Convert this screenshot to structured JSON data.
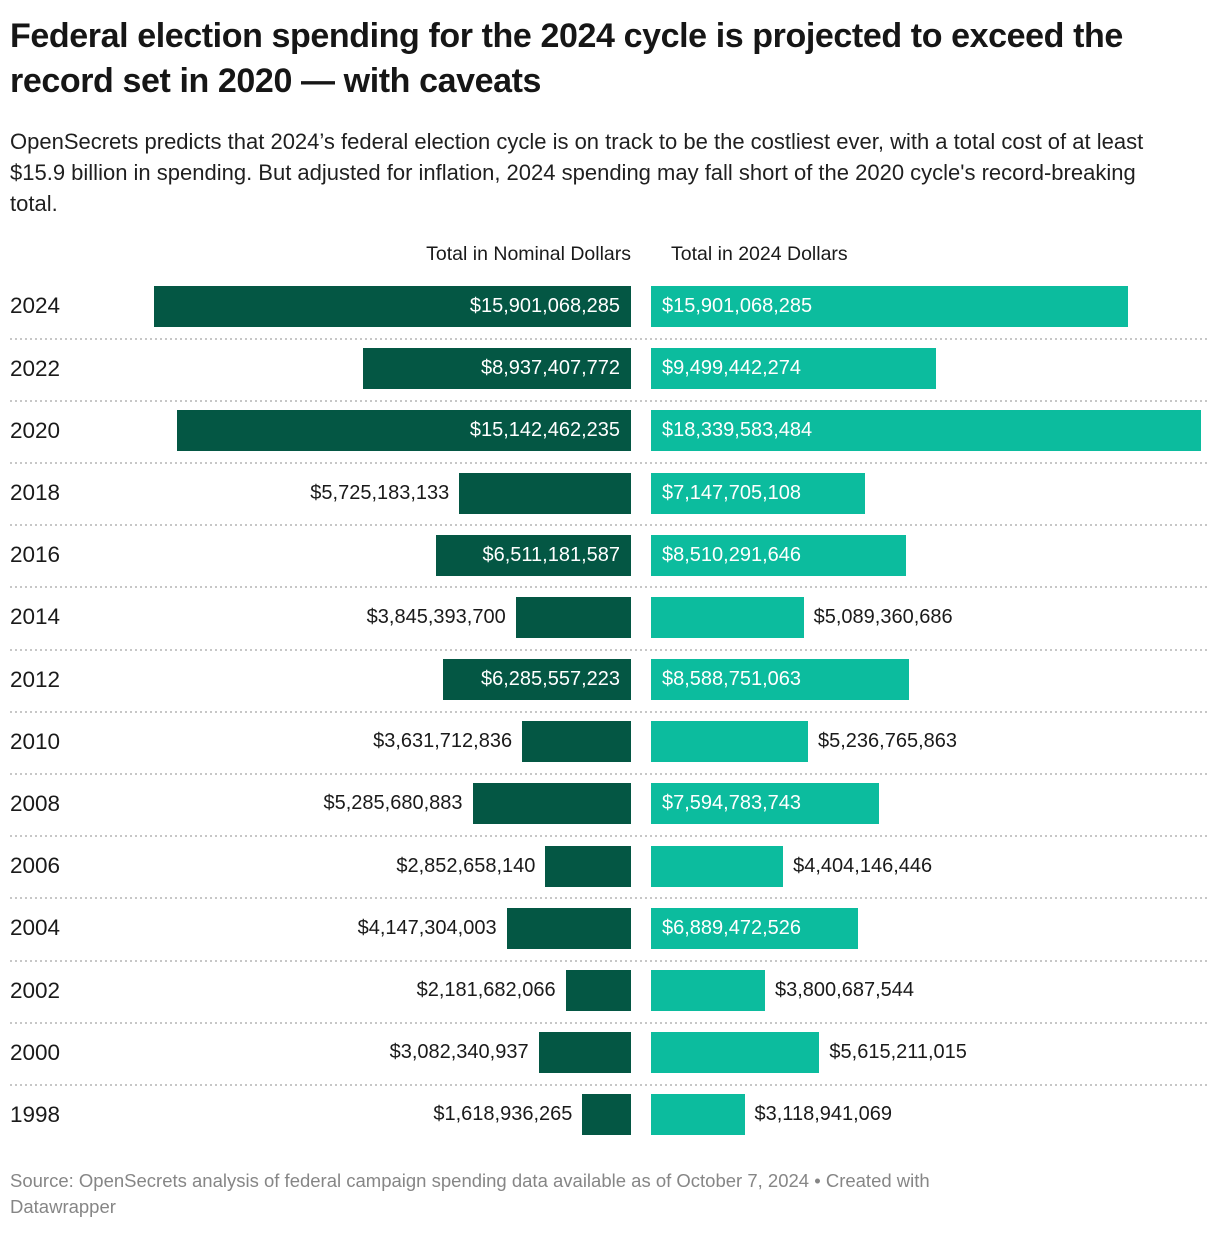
{
  "header": {
    "title": "Federal election spending for the 2024 cycle is projected to exceed the record set in 2020 — with caveats",
    "subtitle": "OpenSecrets predicts that 2024’s federal election cycle is on track to be the costliest ever, with a total cost of at least $15.9 billion in spending. But adjusted for inflation, 2024 spending may fall short of the 2020 cycle's record-breaking total."
  },
  "columns": {
    "nominal": "Total in Nominal Dollars",
    "adjusted": "Total in 2024 Dollars"
  },
  "colors": {
    "nominal_bar": "#045744",
    "adjusted_bar": "#0cbc9e",
    "text": "#1a1a1a",
    "inside_label": "#ffffff",
    "separator": "#c7c7c7",
    "footer_text": "#868686"
  },
  "footer": {
    "line1": "Source: OpenSecrets analysis of federal campaign spending data available as of October 7, 2024 • Created with",
    "line2": "Datawrapper"
  },
  "chart_data": {
    "type": "bar",
    "orientation": "horizontal",
    "unit": "USD",
    "title": "Federal election spending for the 2024 cycle is projected to exceed the record set in 2020 — with caveats",
    "categories": [
      "2024",
      "2022",
      "2020",
      "2018",
      "2016",
      "2014",
      "2012",
      "2010",
      "2008",
      "2006",
      "2004",
      "2002",
      "2000",
      "1998"
    ],
    "scale_max": 18339583484,
    "gridlines": false,
    "legend_position": "column-headers",
    "layout_hints": {
      "nominal_column": "bars right-aligned to shared edge, grow leftward",
      "adjusted_column": "bars left-aligned to shared edge, grow rightward",
      "row_separator": "dotted line between rows",
      "label_rule": "value label inside bar when it fits, otherwise outside in dark text"
    },
    "series": [
      {
        "name": "Total in Nominal Dollars",
        "color": "#045744",
        "values": [
          15901068285,
          8937407772,
          15142462235,
          5725183133,
          6511181587,
          3845393700,
          6285557223,
          3631712836,
          5285680883,
          2852658140,
          4147304003,
          2181682066,
          3082340937,
          1618936265
        ],
        "labels": [
          "$15,901,068,285",
          "$8,937,407,772",
          "$15,142,462,235",
          "$5,725,183,133",
          "$6,511,181,587",
          "$3,845,393,700",
          "$6,285,557,223",
          "$3,631,712,836",
          "$5,285,680,883",
          "$2,852,658,140",
          "$4,147,304,003",
          "$2,181,682,066",
          "$3,082,340,937",
          "$1,618,936,265"
        ],
        "label_inside": [
          true,
          true,
          true,
          false,
          true,
          false,
          true,
          false,
          false,
          false,
          false,
          false,
          false,
          false
        ]
      },
      {
        "name": "Total in 2024 Dollars",
        "color": "#0cbc9e",
        "values": [
          15901068285,
          9499442274,
          18339583484,
          7147705108,
          8510291646,
          5089360686,
          8588751063,
          5236765863,
          7594783743,
          4404146446,
          6889472526,
          3800687544,
          5615211015,
          3118941069
        ],
        "labels": [
          "$15,901,068,285",
          "$9,499,442,274",
          "$18,339,583,484",
          "$7,147,705,108",
          "$8,510,291,646",
          "$5,089,360,686",
          "$8,588,751,063",
          "$5,236,765,863",
          "$7,594,783,743",
          "$4,404,146,446",
          "$6,889,472,526",
          "$3,800,687,544",
          "$5,615,211,015",
          "$3,118,941,069"
        ],
        "label_inside": [
          true,
          true,
          true,
          true,
          true,
          false,
          true,
          false,
          true,
          false,
          true,
          false,
          false,
          false
        ]
      }
    ]
  }
}
